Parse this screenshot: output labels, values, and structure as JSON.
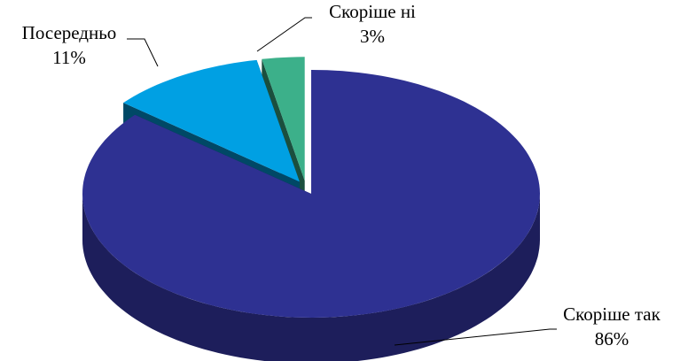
{
  "chart_data": {
    "type": "pie",
    "categories": [
      "Скоріше так",
      "Посередньо",
      "Скоріше ні"
    ],
    "values": [
      86,
      11,
      3
    ],
    "value_labels": [
      "86%",
      "11%",
      "3%"
    ],
    "colors": [
      "#2e3192",
      "#00a0e3",
      "#3cb08a"
    ]
  }
}
